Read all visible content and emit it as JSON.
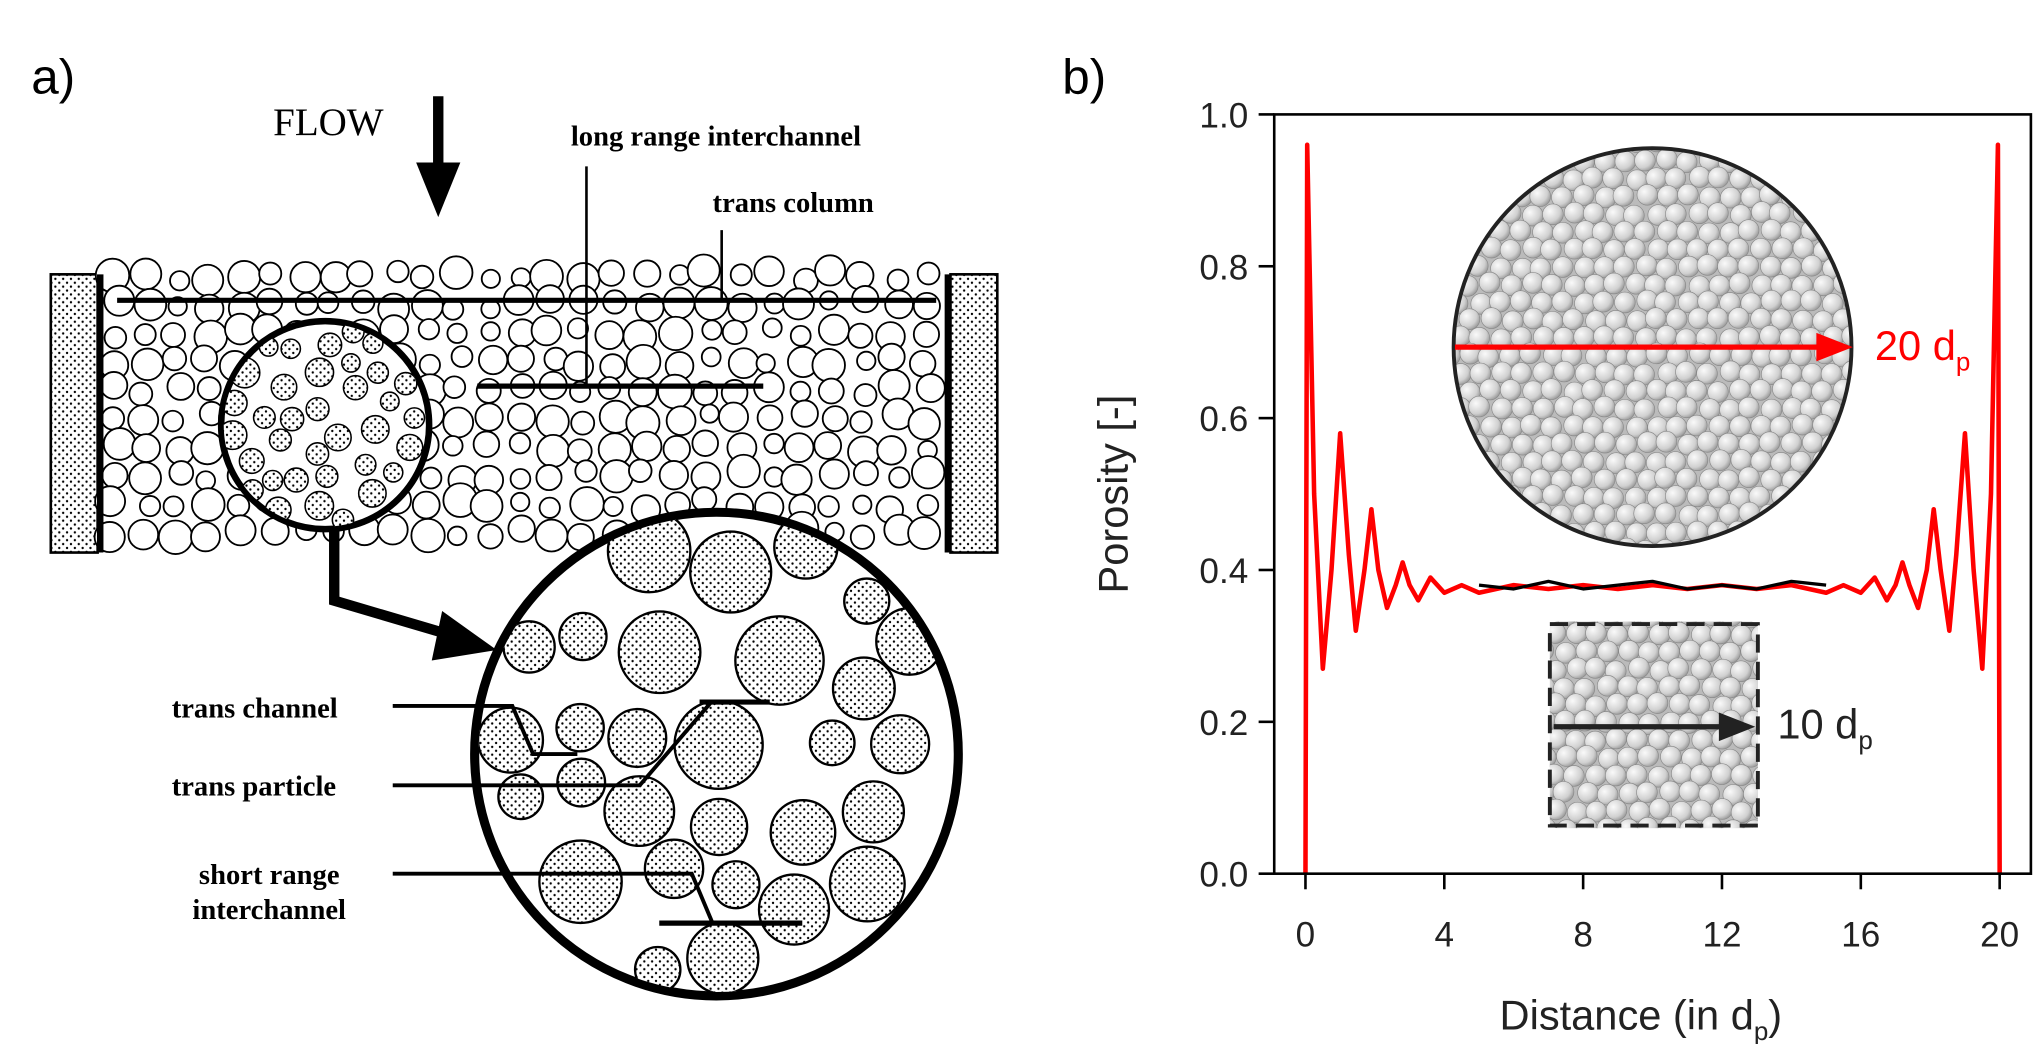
{
  "panel_a": {
    "label": "a)",
    "flow": "FLOW",
    "labels": {
      "long_range": "long range interchannel",
      "trans_column": "trans column",
      "trans_channel": "trans channel",
      "trans_particle": "trans particle",
      "short_range": [
        "short range",
        "interchannel"
      ]
    }
  },
  "panel_b_label": "b)",
  "chart_data": {
    "type": "line",
    "xlabel": [
      "Distance (in d",
      "p",
      ")"
    ],
    "ylabel": "Porosity [-]",
    "xlim": [
      -0.9,
      20.9
    ],
    "ylim": [
      0,
      1
    ],
    "xticks": [
      0,
      4,
      8,
      12,
      16,
      20
    ],
    "yticks": [
      {
        "value": 0,
        "label": "0.0"
      },
      0.2,
      0.4,
      0.6,
      0.8,
      {
        "value": 1,
        "label": "1.0"
      }
    ],
    "series": [
      {
        "color": "#ff0000",
        "x": [
          0,
          0.05,
          0.25,
          0.5,
          0.75,
          1.0,
          1.25,
          1.45,
          1.7,
          1.9,
          2.1,
          2.35,
          2.6,
          2.8,
          3.0,
          3.25,
          3.6,
          4.0,
          4.5,
          5,
          6,
          7,
          8,
          9,
          10,
          11,
          12,
          13,
          14,
          15,
          15.5,
          16,
          16.4,
          16.75,
          17.0,
          17.2,
          17.4,
          17.65,
          17.9,
          18.1,
          18.3,
          18.55,
          18.75,
          19.0,
          19.25,
          19.5,
          19.75,
          19.95,
          20
        ],
        "values": [
          0,
          0.96,
          0.5,
          0.27,
          0.4,
          0.58,
          0.42,
          0.32,
          0.4,
          0.48,
          0.4,
          0.35,
          0.38,
          0.41,
          0.38,
          0.36,
          0.39,
          0.37,
          0.38,
          0.37,
          0.38,
          0.375,
          0.38,
          0.375,
          0.38,
          0.375,
          0.38,
          0.375,
          0.38,
          0.37,
          0.38,
          0.37,
          0.39,
          0.36,
          0.38,
          0.41,
          0.38,
          0.35,
          0.4,
          0.48,
          0.4,
          0.32,
          0.42,
          0.58,
          0.4,
          0.27,
          0.5,
          0.96,
          0
        ]
      },
      {
        "color": "#000000",
        "x": [
          5,
          6,
          7,
          8,
          9,
          10,
          11,
          12,
          13,
          14,
          15
        ],
        "values": [
          0.38,
          0.375,
          0.385,
          0.375,
          0.38,
          0.385,
          0.375,
          0.38,
          0.375,
          0.385,
          0.38
        ]
      }
    ],
    "annotations": [
      {
        "text": [
          "20 d",
          "p"
        ],
        "color": "#ff0000"
      },
      {
        "text": [
          "10 d",
          "p"
        ],
        "color": "#222222"
      }
    ]
  }
}
